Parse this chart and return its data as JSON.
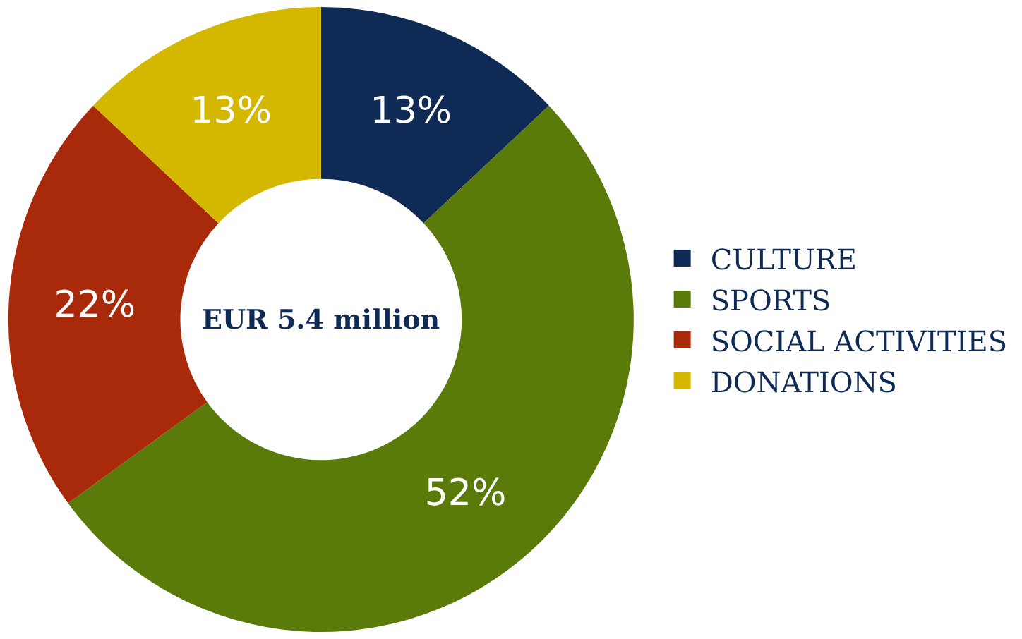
{
  "chart_data": {
    "type": "donut",
    "categories": [
      "CULTURE",
      "SPORTS",
      "SOCIAL ACTIVITIES",
      "DONATIONS"
    ],
    "values": [
      13,
      52,
      22,
      13
    ],
    "colors": [
      "#0f2a55",
      "#5a7a0a",
      "#a82a0a",
      "#d4b800"
    ],
    "value_labels": [
      "13%",
      "52%",
      "22%",
      "13%"
    ],
    "annotations": [
      "EUR 5.4 million"
    ],
    "legend": "right"
  }
}
